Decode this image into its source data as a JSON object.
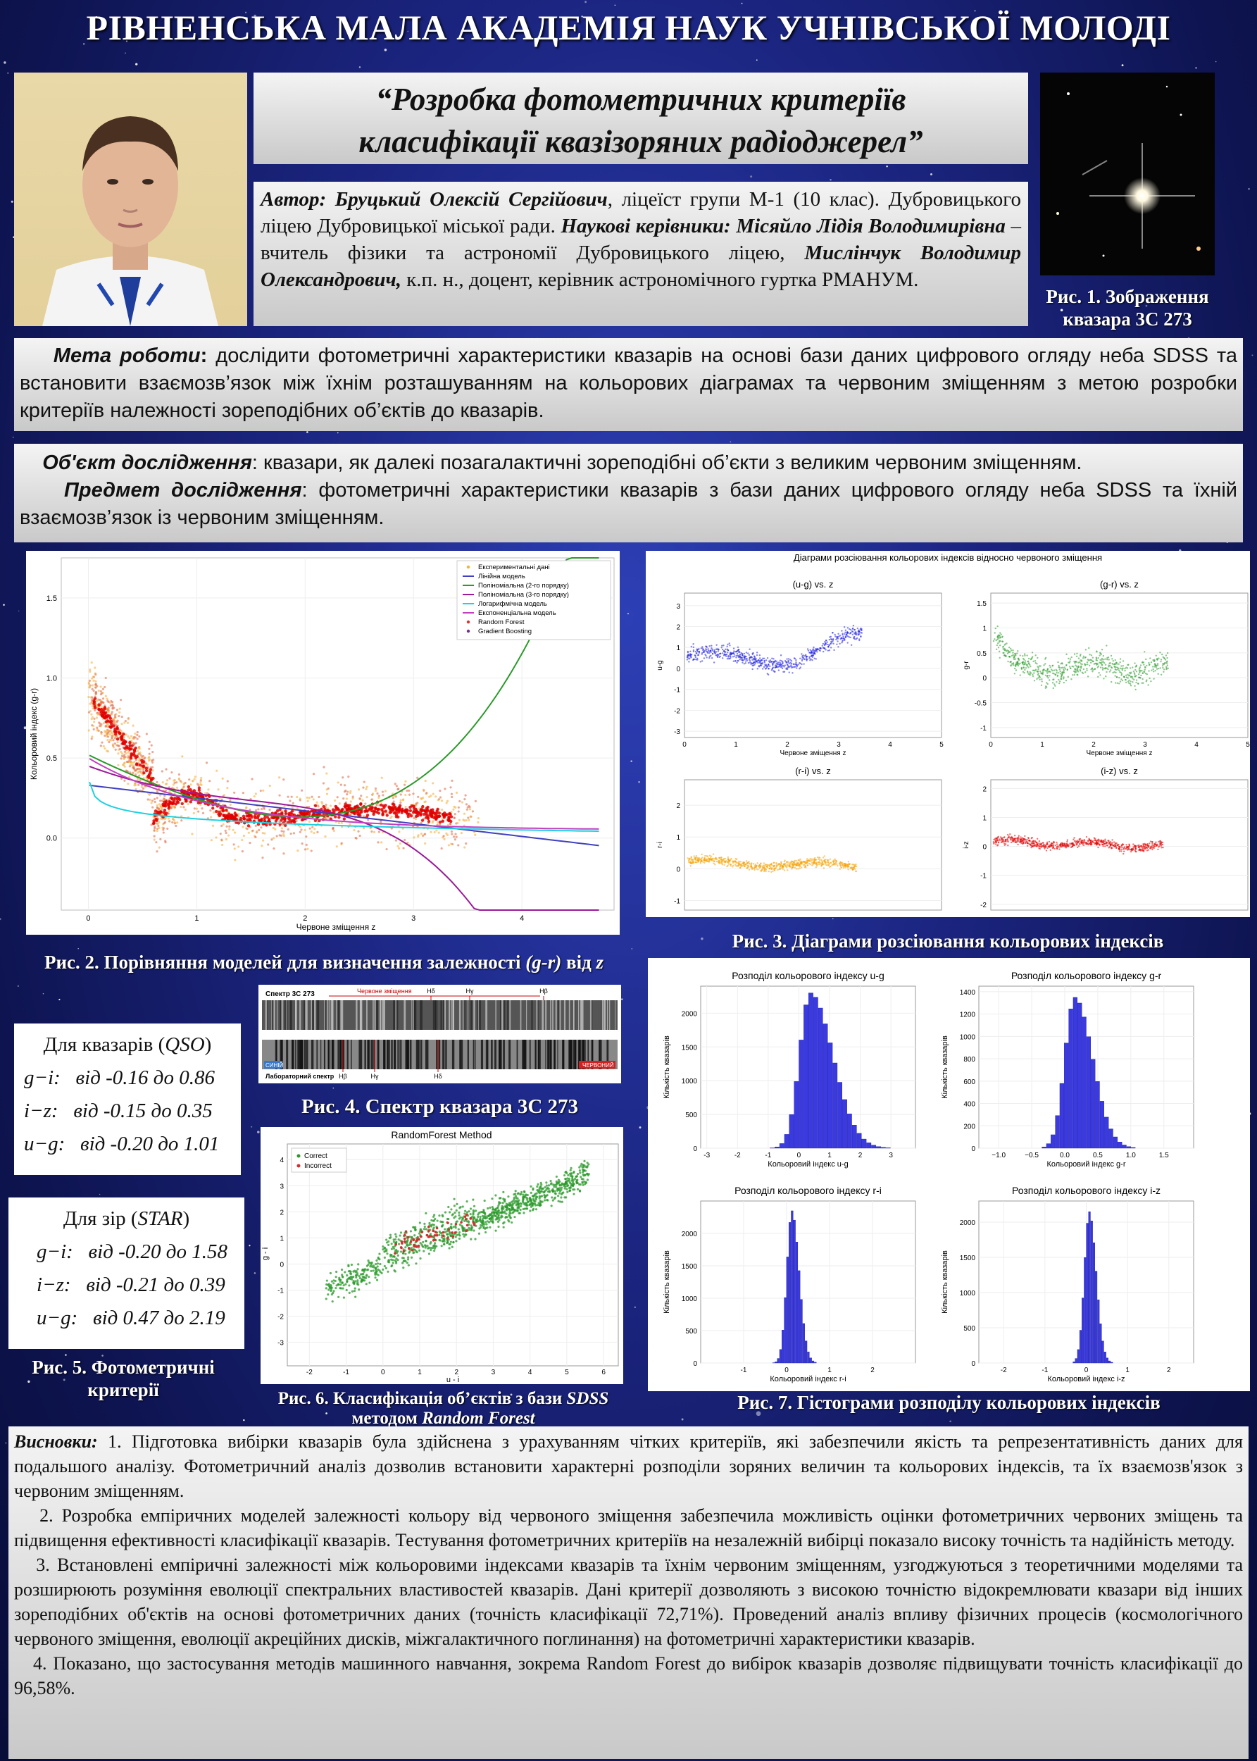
{
  "header": {
    "academy": "РІВНЕНСЬКА МАЛА АКАДЕМІЯ НАУК УЧНІВСЬКОЇ МОЛОДІ"
  },
  "title": {
    "line1": "“Розробка фотометричних критеріїв",
    "line2": "класифікації квазізоряних радіоджерел”"
  },
  "authors": {
    "author_label": "Автор:",
    "author_name": "Бруцький Олексій Сергійович",
    "author_desc": ", ліцеїст групи М-1 (10 клас). Дубровицького ліцею Дубровицької міської ради.",
    "supervisors_label": "Наукові керівники:",
    "sup1_name": "Місяйло Лідія Володимирівна",
    "sup1_desc": " – вчитель фізики та астрономії Дубровицького ліцею, ",
    "sup2_name": "Мислінчук Володимир Олександрович,",
    "sup2_desc": " к.п. н., доцент, керівник астрономічного гуртка РМАНУМ."
  },
  "fig1": {
    "caption": "Рис. 1. Зображення квазара 3С 273"
  },
  "goal": {
    "label": "Мета роботи",
    "colon": ":",
    "text": " дослідити фотометричні характеристики квазарів на основі бази даних цифрового огляду неба SDSS та встановити взаємозв’язок між їхнім розташуванням на кольорових діаграмах та червоним зміщенням з метою розробки критеріїв належності зореподібних об’єктів до квазарів."
  },
  "object": {
    "label": "Об'єкт дослідження",
    "text": ": квазари, як далекі позагалактичні зореподібні об’єкти з великим червоним зміщенням."
  },
  "subject": {
    "label": "Предмет дослідження",
    "text": ": фотометричні характеристики квазарів з бази даних цифрового огляду неба SDSS та їхній взаємозв’язок із червоним зміщенням."
  },
  "fig2": {
    "caption_a": "Рис. 2. Порівняння моделей для визначення залежності ",
    "caption_b": "(g-r)",
    "caption_c": " від ",
    "caption_d": "z",
    "xlabel": "Червоне зміщення z",
    "ylabel": "Кольоровий індекс (g-r)",
    "legend": [
      "Експериментальні дані",
      "Лінійна модель",
      "Поліноміальна (2-го порядку)",
      "Поліноміальна (3-го порядку)",
      "Логарифмічна модель",
      "Експоненціальна модель",
      "Random Forest",
      "Gradient Boosting"
    ]
  },
  "fig3": {
    "suptitle": "Діаграми розсіювання кольорових індексів відносно червоного зміщення",
    "panels": [
      "(u-g) vs. z",
      "(g-r) vs. z",
      "(r-i) vs. z",
      "(i-z) vs. z"
    ],
    "xlabel": "Червоне зміщення z",
    "ylabels": [
      "u-g",
      "g-r",
      "r-i",
      "i-z"
    ],
    "caption": "Рис. 3. Діаграми розсіювання кольорових індексів"
  },
  "fig4": {
    "label_spectrum": "Спектр 3С 273",
    "label_redshift": "Червоне зміщення",
    "label_lab": "Лабораторний спектр",
    "label_blue": "СИНІЙ",
    "label_red": "ЧЕРВОНИЙ",
    "lines_top": [
      "Hδ",
      "Hγ",
      "Hβ"
    ],
    "lines_bottom": [
      "Hβ",
      "Hγ",
      "Hδ"
    ],
    "caption": "Рис. 4. Спектр квазара 3С 273"
  },
  "fig5": {
    "qso_head_a": "Для квазарів (",
    "qso_head_b": "QSO",
    "qso_head_c": ")",
    "qso_rows": [
      [
        "g−i:",
        "від -0.16 до 0.86"
      ],
      [
        "i−z:",
        "від -0.15 до 0.35"
      ],
      [
        "u−g:",
        "від -0.20 до 1.01"
      ]
    ],
    "star_head_a": "Для зір (",
    "star_head_b": "STAR",
    "star_head_c": ")",
    "star_rows": [
      [
        "g−i:",
        "від -0.20 до 1.58"
      ],
      [
        "i−z:",
        "від -0.21 до 0.39"
      ],
      [
        "u−g:",
        "від 0.47 до 2.19"
      ]
    ],
    "caption": "Рис. 5. Фотометричні критерії"
  },
  "fig6": {
    "title": "RandomForest Method",
    "legend": [
      "Correct",
      "Incorrect"
    ],
    "xlabel": "u - i",
    "ylabel": "g - i",
    "caption_a": "Рис. 6. Класифікація об’єктів з бази ",
    "caption_b": "SDSS",
    "caption_c": " методом ",
    "caption_d": "Random Forest"
  },
  "fig7": {
    "titles": [
      "Розподіл кольорового індексу u-g",
      "Розподіл кольорового індексу g-r",
      "Розподіл кольорового індексу r-i",
      "Розподіл кольорового індексу i-z"
    ],
    "xlabels": [
      "Кольоровий індекс u-g",
      "Кольоровий індекс g-r",
      "Кольоровий індекс r-i",
      "Кольоровий індекс i-z"
    ],
    "ylabel": "Кількість квазарів",
    "caption": "Рис. 7. Гістограми розподілу кольорових індексів"
  },
  "conclusions": {
    "label": "Висновки:",
    "p1": " 1. Підготовка вибірки квазарів була здійснена з урахуванням чітких критеріїв, які забезпечили якість та репрезентативність даних для подальшого аналізу. Фотометричний аналіз дозволив встановити характерні розподіли зоряних величин та кольорових індексів, та їх взаємозв'язок з червоним зміщенням.",
    "p2": "2. Розробка емпіричних моделей залежності кольору від червоного зміщення забезпечила можливість оцінки фотометричних червоних зміщень та підвищення ефективності класифікації квазарів. Тестування фотометричних критеріїв на незалежній вибірці показало високу точність та надійність методу.",
    "p3": "3. Встановлені емпіричні залежності між кольоровими індексами квазарів та їхнім червоним зміщенням, узгоджуються з теоретичними моделями та розширюють розуміння еволюції спектральних властивостей квазарів. Дані критерії дозволяють з високою точністю відокремлювати квазари від інших зореподібних об'єктів на основі фотометричних даних (точність класифікації 72,71%). Проведений аналіз впливу фізичних процесів (космологічного червоного зміщення, еволюції акреційних дисків, міжгалактичного поглинання) на фотометричні характеристики квазарів.",
    "p4": "4.  Показано, що застосування методів машинного навчання, зокрема Random Forest до вибірок квазарів дозволяє підвищувати точність класифікації до 96,58%."
  },
  "colors": {
    "background": "#1b2580",
    "blue_points": "#1f1fe0",
    "green_points": "#2a9a2a",
    "orange_points": "#f5a000",
    "red_points": "#e00000",
    "hist": "#3a3ae0"
  }
}
